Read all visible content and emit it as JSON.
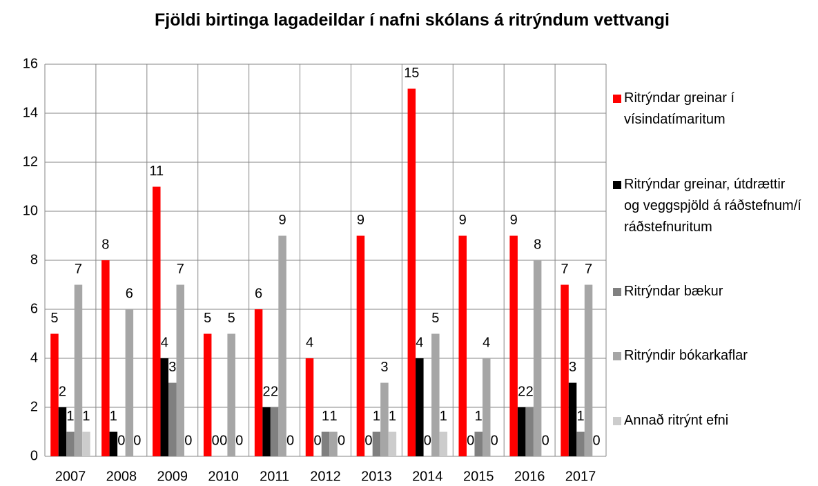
{
  "chart_data": {
    "type": "bar",
    "title": "Fjöldi birtinga lagadeildar í nafni skólans á ritrýndum vettvangi",
    "categories": [
      "2007",
      "2008",
      "2009",
      "2010",
      "2011",
      "2012",
      "2013",
      "2014",
      "2015",
      "2016",
      "2017"
    ],
    "series": [
      {
        "name": "Ritrýndar greinar í vísindatímaritum",
        "color": "#ff0000",
        "values": [
          5,
          8,
          11,
          5,
          6,
          4,
          9,
          15,
          9,
          9,
          7
        ]
      },
      {
        "name": "Ritrýndar greinar, útdrættir og veggspjöld á ráðstefnum/í ráðstefnuritum",
        "color": "#000000",
        "values": [
          2,
          1,
          4,
          0,
          2,
          0,
          0,
          4,
          0,
          2,
          3
        ]
      },
      {
        "name": "Ritrýndar bækur",
        "color": "#808080",
        "values": [
          1,
          0,
          3,
          0,
          2,
          1,
          1,
          0,
          1,
          2,
          1
        ]
      },
      {
        "name": "Ritrýndir bókarkaflar",
        "color": "#a6a6a6",
        "values": [
          7,
          6,
          7,
          5,
          9,
          1,
          3,
          5,
          4,
          8,
          7
        ]
      },
      {
        "name": "Annað ritrýnt efni",
        "color": "#cccccc",
        "values": [
          1,
          0,
          0,
          0,
          0,
          0,
          1,
          1,
          0,
          0,
          0
        ]
      }
    ],
    "ylim": [
      0,
      16
    ],
    "yticks": [
      0,
      2,
      4,
      6,
      8,
      10,
      12,
      14,
      16
    ],
    "grid": true,
    "legend": "right"
  }
}
